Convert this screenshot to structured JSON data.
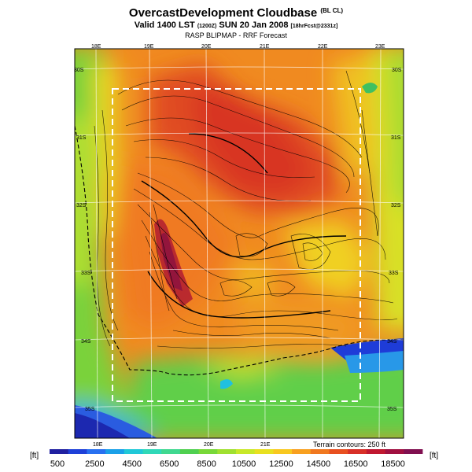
{
  "title": {
    "main": "OvercastDevelopment Cloudbase",
    "tag": "(BL CL)",
    "valid_prefix": "Valid 1400 LST",
    "valid_code": "(1200Z)",
    "valid_date": "SUN 20 Jan 2008",
    "valid_suffix": "[18hrFcst@2331z]",
    "subtitle": "RASP BLIPMAP - RRF Forecast"
  },
  "map": {
    "lon_labels_top": [
      "18E",
      "19E",
      "20E",
      "21E",
      "22E",
      "23E"
    ],
    "lon_labels_bottom": [
      "18E",
      "19E",
      "20E",
      "21E"
    ],
    "lat_labels_left": [
      "30S",
      "31S",
      "32S",
      "33S",
      "34S",
      "35S"
    ],
    "lat_labels_right": [
      "30S",
      "31S",
      "32S",
      "33S",
      "34S",
      "35S"
    ],
    "terrain_note": "Terrain contours: 250 ft"
  },
  "legend": {
    "unit_left": "[ft]",
    "unit_right": "[ft]",
    "tick_labels": [
      "500",
      "2500",
      "4500",
      "6500",
      "8500",
      "10500",
      "12500",
      "14500",
      "16500",
      "18500"
    ],
    "colors": [
      "#2020a0",
      "#1e40d8",
      "#2870f0",
      "#1aa0e8",
      "#20c8d8",
      "#30d8b8",
      "#40d890",
      "#50d050",
      "#78d838",
      "#a0e030",
      "#c8e828",
      "#e8e020",
      "#f8c820",
      "#f8a020",
      "#f07820",
      "#e85020",
      "#d83028",
      "#c01830",
      "#a01040",
      "#801050"
    ]
  }
}
